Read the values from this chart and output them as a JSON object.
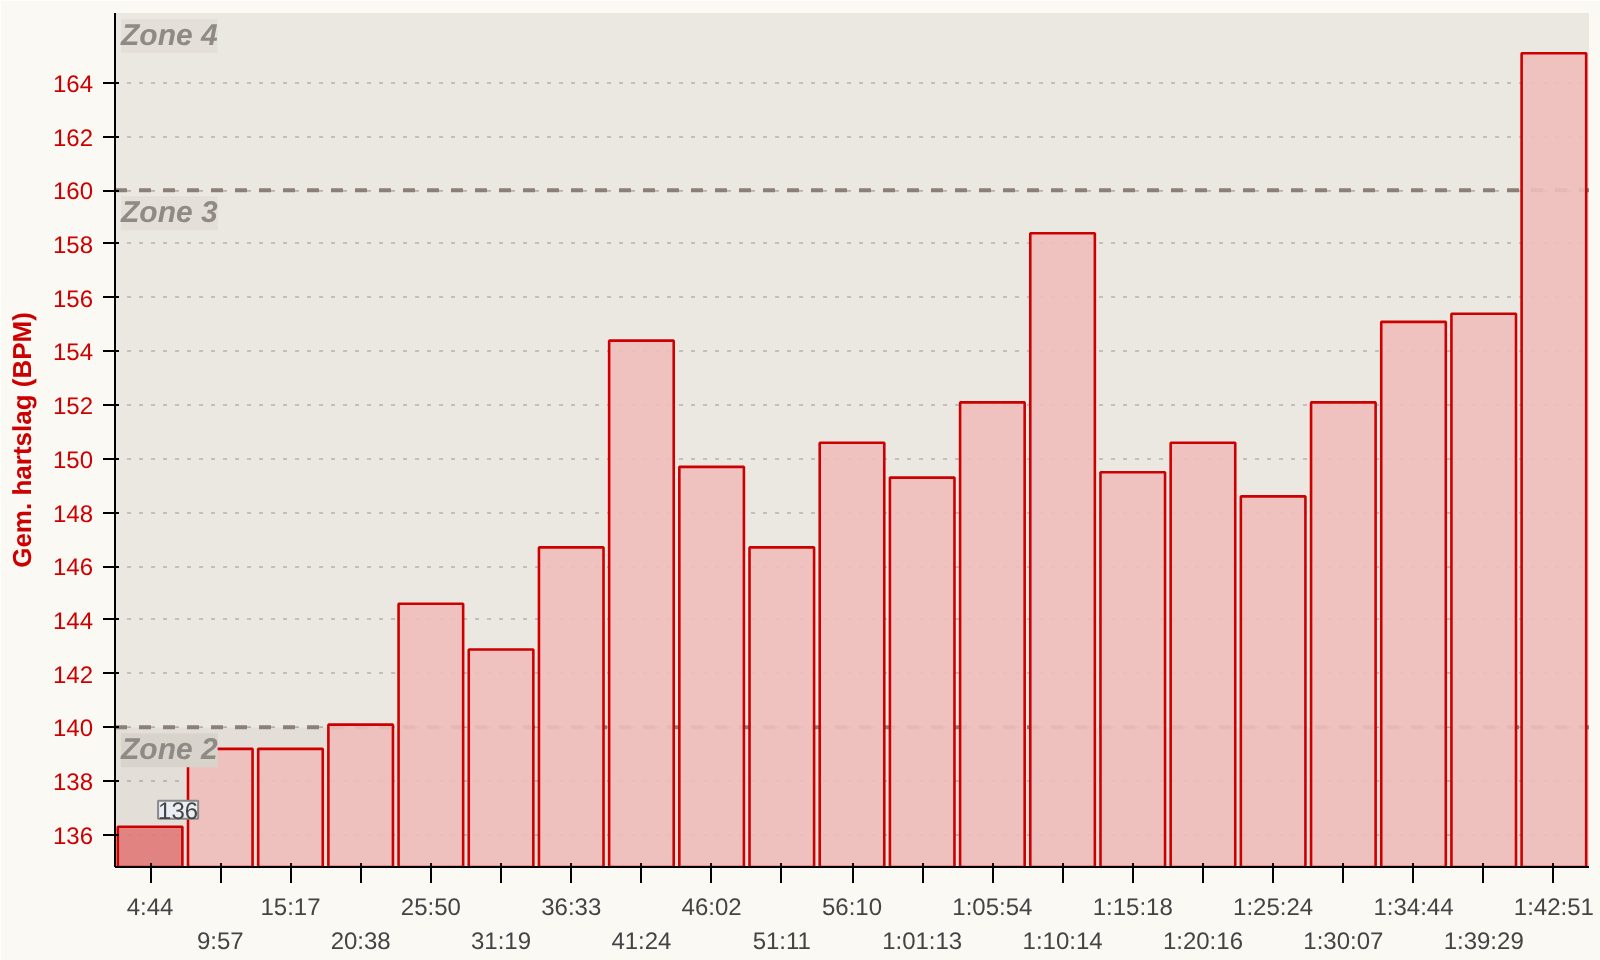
{
  "chart_data": {
    "type": "bar",
    "ylabel": "Gem. hartslag (BPM)",
    "categories": [
      "4:44",
      "9:57",
      "15:17",
      "20:38",
      "25:50",
      "31:19",
      "36:33",
      "41:24",
      "46:02",
      "51:11",
      "56:10",
      "1:01:13",
      "1:05:54",
      "1:10:14",
      "1:15:18",
      "1:20:16",
      "1:25:24",
      "1:30:07",
      "1:34:44",
      "1:39:29",
      "1:42:51"
    ],
    "values": [
      136.3,
      139.2,
      139.2,
      140.1,
      144.6,
      142.9,
      146.7,
      154.4,
      149.7,
      146.7,
      150.6,
      149.3,
      152.1,
      158.4,
      149.5,
      150.6,
      148.6,
      152.1,
      155.1,
      155.4,
      165.1
    ],
    "value_labels": [
      "136",
      null,
      null,
      null,
      null,
      null,
      null,
      null,
      null,
      null,
      null,
      null,
      null,
      null,
      null,
      null,
      null,
      null,
      null,
      null,
      null
    ],
    "colors": [
      "#e07a78",
      "#f0bebb",
      "#f0bebb",
      "#f0bebb",
      "#f0bebb",
      "#f0bebb",
      "#f0bebb",
      "#f0bebb",
      "#f0bebb",
      "#f0bebb",
      "#f0bebb",
      "#f0bebb",
      "#f0bebb",
      "#f0bebb",
      "#f0bebb",
      "#f0bebb",
      "#f0bebb",
      "#f0bebb",
      "#f0bebb",
      "#f0bebb",
      "#f0bebb"
    ],
    "ylim": [
      134.8,
      166.6
    ],
    "yticks": [
      136,
      138,
      140,
      142,
      144,
      146,
      148,
      150,
      152,
      154,
      156,
      158,
      160,
      162,
      164
    ],
    "bands": [
      {
        "axis": "y",
        "from": 134.8,
        "to": 140,
        "label": "Zone 2",
        "color": "#d8d4cc"
      },
      {
        "axis": "y",
        "from": 140,
        "to": 160,
        "label": "Zone 3",
        "color": "#e4e0d9"
      },
      {
        "axis": "y",
        "from": 160,
        "to": 166.6,
        "label": "Zone 4",
        "color": "#e4e0d9"
      }
    ],
    "grid": "y"
  }
}
